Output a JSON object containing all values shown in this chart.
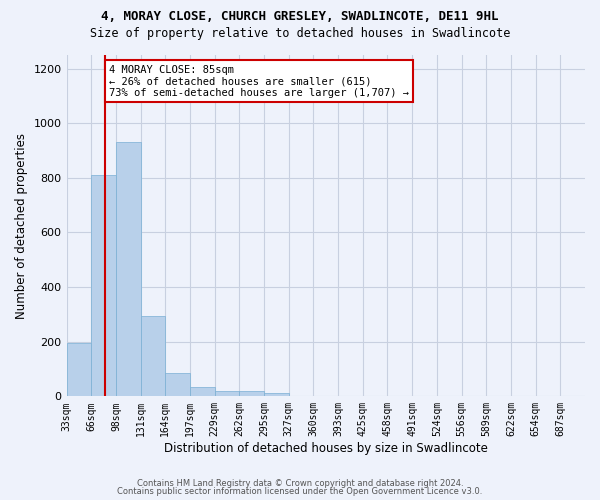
{
  "title_line1": "4, MORAY CLOSE, CHURCH GRESLEY, SWADLINCOTE, DE11 9HL",
  "title_line2": "Size of property relative to detached houses in Swadlincote",
  "xlabel": "Distribution of detached houses by size in Swadlincote",
  "ylabel": "Number of detached properties",
  "footer_line1": "Contains HM Land Registry data © Crown copyright and database right 2024.",
  "footer_line2": "Contains public sector information licensed under the Open Government Licence v3.0.",
  "bar_values": [
    195,
    810,
    930,
    295,
    85,
    35,
    20,
    18,
    12,
    0,
    0,
    0,
    0,
    0,
    0,
    0,
    0,
    0,
    0,
    0,
    0
  ],
  "categories": [
    "33sqm",
    "66sqm",
    "98sqm",
    "131sqm",
    "164sqm",
    "197sqm",
    "229sqm",
    "262sqm",
    "295sqm",
    "327sqm",
    "360sqm",
    "393sqm",
    "425sqm",
    "458sqm",
    "491sqm",
    "524sqm",
    "556sqm",
    "589sqm",
    "622sqm",
    "654sqm",
    "687sqm"
  ],
  "bar_color": "#b8d0ea",
  "bar_edge_color": "#7aafd4",
  "background_color": "#eef2fb",
  "plot_bg_color": "#eef2fb",
  "grid_color": "#c8d0e0",
  "annotation_text_line1": "4 MORAY CLOSE: 85sqm",
  "annotation_text_line2": "← 26% of detached houses are smaller (615)",
  "annotation_text_line3": "73% of semi-detached houses are larger (1,707) →",
  "vline_bin_index": 1.57,
  "ylim": [
    0,
    1250
  ],
  "yticks": [
    0,
    200,
    400,
    600,
    800,
    1000,
    1200
  ],
  "annotation_box_facecolor": "#ffffff",
  "annotation_box_edgecolor": "#cc0000",
  "vline_color": "#cc0000",
  "n_bins": 21
}
